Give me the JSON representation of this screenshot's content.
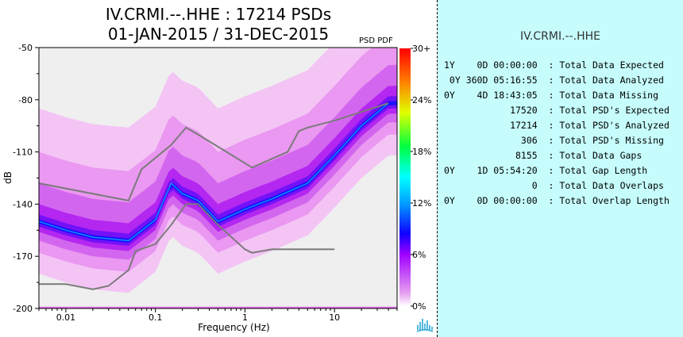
{
  "title_line1": "IV.CRMI.--.HHE : 17214 PSDs",
  "title_line2": "01-JAN-2015 / 31-DEC-2015",
  "psd_pdf_label": "PSD PDF",
  "chart_data": {
    "type": "heatmap",
    "xlabel": "Frequency (Hz)",
    "ylabel": "dB",
    "x_scale": "log",
    "xlim": [
      0.005,
      50
    ],
    "ylim": [
      -200,
      -50
    ],
    "x_ticks": [
      "0.01",
      "0.1",
      "1",
      "10"
    ],
    "y_ticks": [
      "-50",
      "-80",
      "-110",
      "-140",
      "-170",
      "-200"
    ],
    "colorbar_ticks": [
      "30+",
      "24%",
      "18%",
      "12%",
      "6%",
      "0%"
    ],
    "colorbar_range": [
      0,
      30
    ],
    "mode_curve": {
      "x": [
        0.005,
        0.01,
        0.02,
        0.05,
        0.1,
        0.15,
        0.2,
        0.3,
        0.5,
        1,
        2,
        5,
        10,
        20,
        40
      ],
      "y": [
        -150,
        -155,
        -159,
        -161,
        -149,
        -128,
        -134,
        -138,
        -150,
        -143,
        -137,
        -128,
        -112,
        -95,
        -82
      ]
    },
    "nhnm": {
      "x": [
        0.005,
        0.01,
        0.02,
        0.03,
        0.05,
        0.06,
        0.1,
        0.15,
        0.22,
        0.3,
        0.5,
        1,
        1.2,
        2,
        3,
        5,
        10
      ],
      "y": [
        -186,
        -186,
        -189,
        -187,
        -178,
        -167,
        -163,
        -152,
        -140,
        -140,
        -152,
        -166,
        -168,
        -166,
        -166,
        -166,
        -166
      ]
    },
    "nlnm": {
      "x": [
        0.005,
        0.05,
        0.07,
        0.15,
        0.22,
        0.3,
        1.2,
        3,
        4,
        5,
        10,
        40
      ],
      "y": [
        -128,
        -138,
        -120,
        -106,
        -96,
        -100,
        -119,
        -110,
        -98,
        -96,
        -92,
        -82
      ]
    }
  },
  "stats_title": "IV.CRMI.--.HHE",
  "stats": [
    {
      "value": "1Y    0D 00:00:00",
      "label": "Total Data Expected"
    },
    {
      "value": "0Y 360D 05:16:55",
      "label": "Total Data Analyzed"
    },
    {
      "value": "0Y    4D 18:43:05",
      "label": "Total Data Missing"
    },
    {
      "value": "17520",
      "label": "Total PSD's Expected"
    },
    {
      "value": "17214",
      "label": "Total PSD's Analyzed"
    },
    {
      "value": "306",
      "label": "Total PSD's Missing"
    },
    {
      "value": "8155",
      "label": "Total Data Gaps"
    },
    {
      "value": "0Y    1D 05:54:20",
      "label": "Total Gap Length"
    },
    {
      "value": "0",
      "label": "Total Data Overlaps"
    },
    {
      "value": "0Y    0D 00:00:00",
      "label": "Total Overlap Length"
    }
  ],
  "colors": {
    "right_panel_bg": "#c6fcfc",
    "plot_bg": "#efefef",
    "curve_color": "#7a7a7a"
  }
}
